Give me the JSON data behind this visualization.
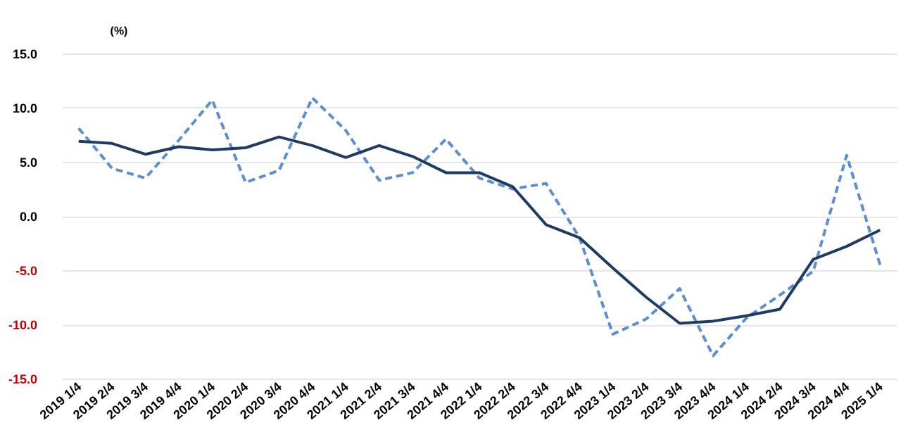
{
  "chart_data": {
    "type": "line",
    "ylabel": "(%)",
    "categories": [
      "2019 1/4",
      "2019 2/4",
      "2019 3/4",
      "2019 4/4",
      "2020 1/4",
      "2020 2/4",
      "2020 3/4",
      "2020 4/4",
      "2021 1/4",
      "2021 2/4",
      "2021 3/4",
      "2021 4/4",
      "2022 1/4",
      "2022 2/4",
      "2022 3/4",
      "2022 4/4",
      "2023 1/4",
      "2023 2/4",
      "2023 3/4",
      "2023 4/4",
      "2024 1/4",
      "2024 2/4",
      "2024 3/4",
      "2024 4/4",
      "2025 1/4"
    ],
    "series": [
      {
        "color": "#5b8fcf",
        "line_style": "dashed",
        "values": [
          8.1,
          4.4,
          3.5,
          7.0,
          10.7,
          3.1,
          4.2,
          10.9,
          7.9,
          3.3,
          4.0,
          7.1,
          3.5,
          2.5,
          3.0,
          -2.0,
          -10.9,
          -9.5,
          -6.7,
          -12.9,
          -9.4,
          -7.3,
          -5.1,
          5.6,
          -4.5
        ]
      },
      {
        "color": "#1f3b64",
        "line_style": "solid",
        "values": [
          6.9,
          6.7,
          5.7,
          6.4,
          6.1,
          6.3,
          7.3,
          6.5,
          5.4,
          6.5,
          5.5,
          4.0,
          4.0,
          2.7,
          -0.8,
          -2.0,
          -4.8,
          -7.5,
          -9.9,
          -9.7,
          -9.2,
          -8.6,
          -4.0,
          -2.8,
          -1.3
        ]
      }
    ],
    "ylim": [
      -15,
      15
    ],
    "yticks": [
      {
        "value": -15,
        "label": "-15.0"
      },
      {
        "value": -10,
        "label": "-10.0"
      },
      {
        "value": -5,
        "label": "-5.0"
      },
      {
        "value": 0,
        "label": "0.0"
      },
      {
        "value": 5,
        "label": "5.0"
      },
      {
        "value": 10,
        "label": "10.0"
      },
      {
        "value": 15,
        "label": "15.0"
      }
    ],
    "grid": "y",
    "legend": false,
    "marker": "none"
  }
}
